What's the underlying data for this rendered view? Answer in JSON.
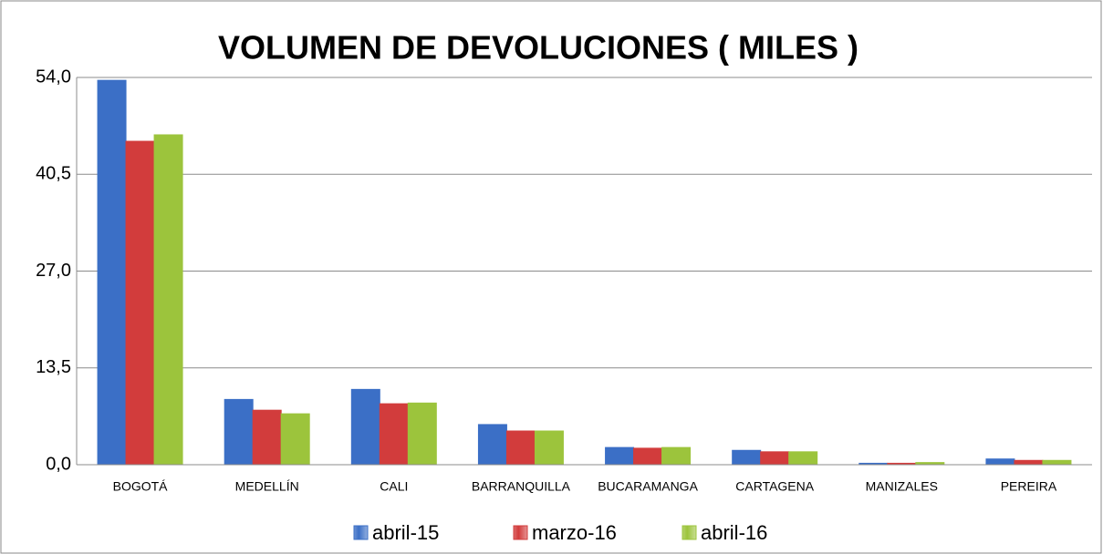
{
  "chart_data": {
    "type": "bar",
    "title": "VOLUMEN DE DEVOLUCIONES ( MILES )",
    "categories": [
      "BOGOTÁ",
      "MEDELLÍN",
      "CALI",
      "BARRANQUILLA",
      "BUCARAMANGA",
      "CARTAGENA",
      "MANIZALES",
      "PEREIRA"
    ],
    "series": [
      {
        "name": "abril-15",
        "color": "#3b6fc6",
        "values": [
          53.6,
          9.1,
          10.5,
          5.6,
          2.4,
          2.0,
          0.2,
          0.8
        ]
      },
      {
        "name": "marzo-16",
        "color": "#d23c3c",
        "values": [
          45.1,
          7.6,
          8.5,
          4.7,
          2.3,
          1.8,
          0.2,
          0.6
        ]
      },
      {
        "name": "abril-16",
        "color": "#9cc43c",
        "values": [
          46.0,
          7.1,
          8.6,
          4.7,
          2.4,
          1.8,
          0.3,
          0.6
        ]
      }
    ],
    "ylim": [
      0,
      54
    ],
    "yticks": [
      {
        "value": 0,
        "label": "0,0"
      },
      {
        "value": 13.5,
        "label": "13,5"
      },
      {
        "value": 27,
        "label": "27,0"
      },
      {
        "value": 40.5,
        "label": "40,5"
      },
      {
        "value": 54,
        "label": "54,0"
      }
    ],
    "grid": true,
    "legend": "bottom"
  }
}
